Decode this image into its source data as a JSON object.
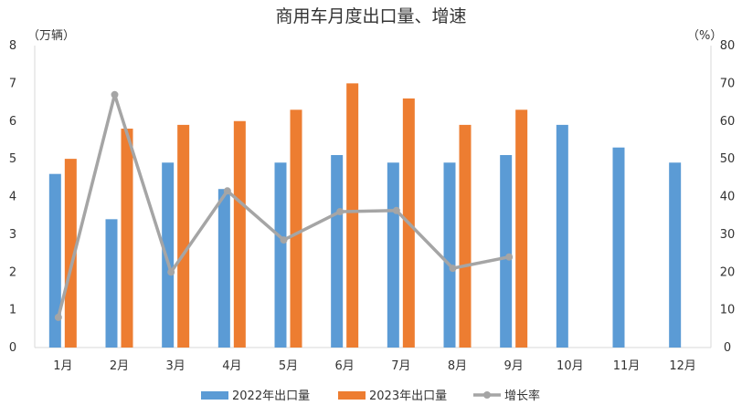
{
  "chart_data": {
    "type": "bar",
    "title": "商用车月度出口量、增速",
    "left_unit": "（万辆）",
    "right_unit": "（%）",
    "categories": [
      "1月",
      "2月",
      "3月",
      "4月",
      "5月",
      "6月",
      "7月",
      "8月",
      "9月",
      "10月",
      "11月",
      "12月"
    ],
    "left_ticks": [
      "0",
      "1",
      "2",
      "3",
      "4",
      "5",
      "6",
      "7",
      "8"
    ],
    "right_ticks": [
      "0",
      "10",
      "20",
      "30",
      "40",
      "50",
      "60",
      "70",
      "80"
    ],
    "ylim_left": [
      0,
      8
    ],
    "ylim_right": [
      0,
      80
    ],
    "grid": false,
    "legend_position": "bottom",
    "series": [
      {
        "name": "2022年出口量",
        "kind": "bar",
        "axis": "left",
        "color": "#5B9BD5",
        "values": [
          4.6,
          3.4,
          4.9,
          4.2,
          4.9,
          5.1,
          4.9,
          4.9,
          5.1,
          5.9,
          5.3,
          4.9
        ]
      },
      {
        "name": "2023年出口量",
        "kind": "bar",
        "axis": "left",
        "color": "#ED7D31",
        "values": [
          5.0,
          5.8,
          5.9,
          6.0,
          6.3,
          7.0,
          6.6,
          5.9,
          6.3,
          null,
          null,
          null
        ]
      },
      {
        "name": "增长率",
        "kind": "line",
        "axis": "right",
        "color": "#A5A5A5",
        "values": [
          8,
          67,
          20,
          41.5,
          28.5,
          36,
          36.3,
          21,
          24,
          null,
          null,
          null
        ]
      }
    ]
  }
}
